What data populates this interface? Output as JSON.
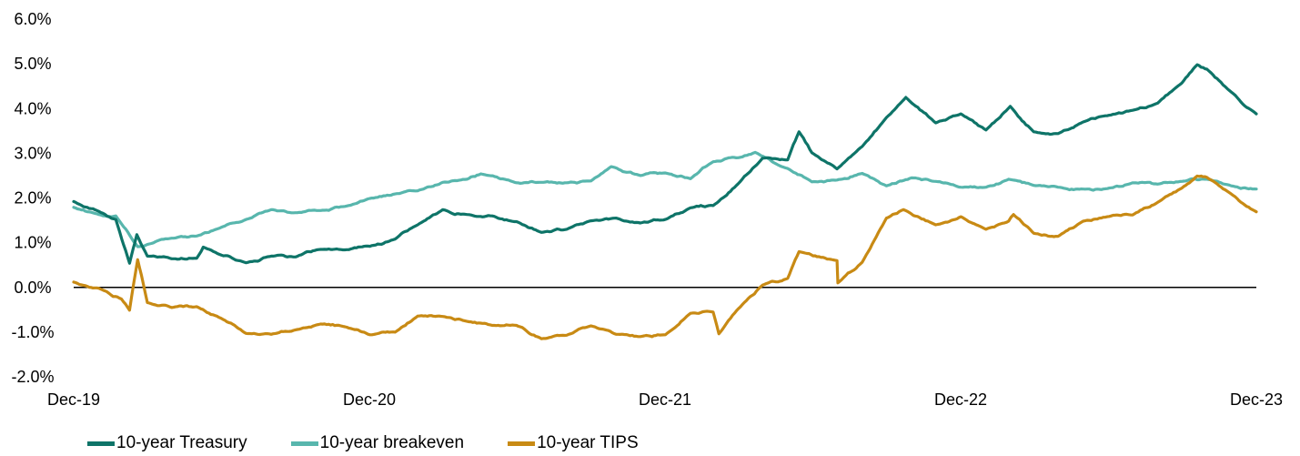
{
  "chart_data": {
    "type": "line",
    "title": "",
    "xlabel": "",
    "ylabel": "",
    "xlim": [
      "2019-12-31",
      "2023-12-31"
    ],
    "ylim": [
      -2.0,
      6.0
    ],
    "y_ticks": [
      "6.0%",
      "5.0%",
      "4.0%",
      "3.0%",
      "2.0%",
      "1.0%",
      "0.0%",
      "-1.0%",
      "-2.0%"
    ],
    "x_ticks": [
      "Dec-19",
      "Dec-20",
      "Dec-21",
      "Dec-22",
      "Dec-23"
    ],
    "grid": false,
    "legend_position": "bottom-left",
    "series": [
      {
        "name": "10-year Treasury",
        "color": "#0e7468",
        "points": [
          [
            "2019-12-31",
            1.92
          ],
          [
            "2020-01-31",
            1.7
          ],
          [
            "2020-02-21",
            1.52
          ],
          [
            "2020-03-09",
            0.54
          ],
          [
            "2020-03-18",
            1.18
          ],
          [
            "2020-03-31",
            0.7
          ],
          [
            "2020-04-30",
            0.64
          ],
          [
            "2020-05-31",
            0.65
          ],
          [
            "2020-06-08",
            0.9
          ],
          [
            "2020-07-31",
            0.55
          ],
          [
            "2020-08-31",
            0.7
          ],
          [
            "2020-09-30",
            0.68
          ],
          [
            "2020-10-31",
            0.85
          ],
          [
            "2020-11-30",
            0.84
          ],
          [
            "2020-12-31",
            0.92
          ],
          [
            "2021-01-31",
            1.08
          ],
          [
            "2021-02-28",
            1.4
          ],
          [
            "2021-03-31",
            1.74
          ],
          [
            "2021-04-30",
            1.63
          ],
          [
            "2021-05-31",
            1.6
          ],
          [
            "2021-06-30",
            1.47
          ],
          [
            "2021-07-31",
            1.23
          ],
          [
            "2021-08-31",
            1.3
          ],
          [
            "2021-09-30",
            1.49
          ],
          [
            "2021-10-31",
            1.55
          ],
          [
            "2021-11-30",
            1.44
          ],
          [
            "2021-12-31",
            1.52
          ],
          [
            "2022-01-31",
            1.78
          ],
          [
            "2022-02-28",
            1.83
          ],
          [
            "2022-03-31",
            2.32
          ],
          [
            "2022-04-30",
            2.89
          ],
          [
            "2022-05-31",
            2.85
          ],
          [
            "2022-06-14",
            3.48
          ],
          [
            "2022-06-30",
            3.01
          ],
          [
            "2022-07-31",
            2.65
          ],
          [
            "2022-08-31",
            3.15
          ],
          [
            "2022-09-30",
            3.8
          ],
          [
            "2022-10-24",
            4.25
          ],
          [
            "2022-11-30",
            3.68
          ],
          [
            "2022-12-31",
            3.88
          ],
          [
            "2023-01-31",
            3.52
          ],
          [
            "2023-03-02",
            4.05
          ],
          [
            "2023-03-31",
            3.48
          ],
          [
            "2023-04-30",
            3.44
          ],
          [
            "2023-05-31",
            3.7
          ],
          [
            "2023-06-30",
            3.84
          ],
          [
            "2023-07-31",
            3.96
          ],
          [
            "2023-08-31",
            4.12
          ],
          [
            "2023-09-30",
            4.57
          ],
          [
            "2023-10-19",
            4.98
          ],
          [
            "2023-10-31",
            4.88
          ],
          [
            "2023-11-30",
            4.37
          ],
          [
            "2023-12-31",
            3.88
          ]
        ]
      },
      {
        "name": "10-year breakeven",
        "color": "#58b6ad",
        "points": [
          [
            "2019-12-31",
            1.79
          ],
          [
            "2020-01-31",
            1.63
          ],
          [
            "2020-02-21",
            1.6
          ],
          [
            "2020-03-19",
            0.91
          ],
          [
            "2020-03-31",
            0.96
          ],
          [
            "2020-04-30",
            1.1
          ],
          [
            "2020-05-31",
            1.15
          ],
          [
            "2020-06-30",
            1.34
          ],
          [
            "2020-07-31",
            1.52
          ],
          [
            "2020-08-31",
            1.74
          ],
          [
            "2020-09-30",
            1.67
          ],
          [
            "2020-10-31",
            1.72
          ],
          [
            "2020-11-30",
            1.81
          ],
          [
            "2020-12-31",
            1.99
          ],
          [
            "2021-01-31",
            2.09
          ],
          [
            "2021-02-28",
            2.16
          ],
          [
            "2021-03-31",
            2.35
          ],
          [
            "2021-04-30",
            2.42
          ],
          [
            "2021-05-17",
            2.54
          ],
          [
            "2021-06-30",
            2.34
          ],
          [
            "2021-07-31",
            2.35
          ],
          [
            "2021-08-31",
            2.34
          ],
          [
            "2021-09-30",
            2.38
          ],
          [
            "2021-10-25",
            2.7
          ],
          [
            "2021-11-30",
            2.5
          ],
          [
            "2021-12-31",
            2.56
          ],
          [
            "2022-01-31",
            2.43
          ],
          [
            "2022-02-28",
            2.81
          ],
          [
            "2022-03-31",
            2.9
          ],
          [
            "2022-04-21",
            3.02
          ],
          [
            "2022-05-31",
            2.66
          ],
          [
            "2022-06-30",
            2.36
          ],
          [
            "2022-07-31",
            2.4
          ],
          [
            "2022-08-31",
            2.55
          ],
          [
            "2022-09-30",
            2.27
          ],
          [
            "2022-10-31",
            2.45
          ],
          [
            "2022-11-30",
            2.37
          ],
          [
            "2022-12-31",
            2.24
          ],
          [
            "2023-01-31",
            2.24
          ],
          [
            "2023-02-28",
            2.42
          ],
          [
            "2023-03-31",
            2.28
          ],
          [
            "2023-04-30",
            2.24
          ],
          [
            "2023-05-31",
            2.2
          ],
          [
            "2023-06-30",
            2.21
          ],
          [
            "2023-07-31",
            2.34
          ],
          [
            "2023-08-31",
            2.31
          ],
          [
            "2023-09-30",
            2.37
          ],
          [
            "2023-10-31",
            2.42
          ],
          [
            "2023-11-30",
            2.27
          ],
          [
            "2023-12-31",
            2.2
          ]
        ]
      },
      {
        "name": "10-year TIPS",
        "color": "#c88a14",
        "points": [
          [
            "2019-12-31",
            0.12
          ],
          [
            "2020-01-31",
            -0.02
          ],
          [
            "2020-02-28",
            -0.26
          ],
          [
            "2020-03-09",
            -0.51
          ],
          [
            "2020-03-19",
            0.62
          ],
          [
            "2020-03-31",
            -0.34
          ],
          [
            "2020-04-30",
            -0.45
          ],
          [
            "2020-05-31",
            -0.43
          ],
          [
            "2020-06-30",
            -0.69
          ],
          [
            "2020-07-31",
            -1.03
          ],
          [
            "2020-08-31",
            -1.05
          ],
          [
            "2020-09-30",
            -0.95
          ],
          [
            "2020-10-31",
            -0.82
          ],
          [
            "2020-11-30",
            -0.88
          ],
          [
            "2020-12-31",
            -1.06
          ],
          [
            "2021-01-31",
            -1.0
          ],
          [
            "2021-02-28",
            -0.64
          ],
          [
            "2021-03-31",
            -0.65
          ],
          [
            "2021-04-30",
            -0.76
          ],
          [
            "2021-05-31",
            -0.85
          ],
          [
            "2021-06-30",
            -0.85
          ],
          [
            "2021-07-31",
            -1.15
          ],
          [
            "2021-08-31",
            -1.07
          ],
          [
            "2021-09-30",
            -0.86
          ],
          [
            "2021-10-31",
            -1.05
          ],
          [
            "2021-11-30",
            -1.1
          ],
          [
            "2021-12-31",
            -1.06
          ],
          [
            "2022-01-31",
            -0.58
          ],
          [
            "2022-02-28",
            -0.55
          ],
          [
            "2022-03-07",
            -1.04
          ],
          [
            "2022-03-31",
            -0.48
          ],
          [
            "2022-04-30",
            0.05
          ],
          [
            "2022-05-31",
            0.2
          ],
          [
            "2022-06-14",
            0.8
          ],
          [
            "2022-07-31",
            0.6
          ],
          [
            "2022-08-01",
            0.1
          ],
          [
            "2022-08-31",
            0.56
          ],
          [
            "2022-09-30",
            1.55
          ],
          [
            "2022-10-21",
            1.74
          ],
          [
            "2022-11-30",
            1.4
          ],
          [
            "2022-12-31",
            1.58
          ],
          [
            "2023-01-31",
            1.3
          ],
          [
            "2023-02-28",
            1.48
          ],
          [
            "2023-03-06",
            1.63
          ],
          [
            "2023-03-31",
            1.21
          ],
          [
            "2023-04-30",
            1.14
          ],
          [
            "2023-05-31",
            1.48
          ],
          [
            "2023-06-30",
            1.58
          ],
          [
            "2023-07-31",
            1.62
          ],
          [
            "2023-08-31",
            1.9
          ],
          [
            "2023-09-30",
            2.22
          ],
          [
            "2023-10-19",
            2.49
          ],
          [
            "2023-10-31",
            2.46
          ],
          [
            "2023-11-30",
            2.09
          ],
          [
            "2023-12-31",
            1.69
          ]
        ]
      }
    ]
  }
}
